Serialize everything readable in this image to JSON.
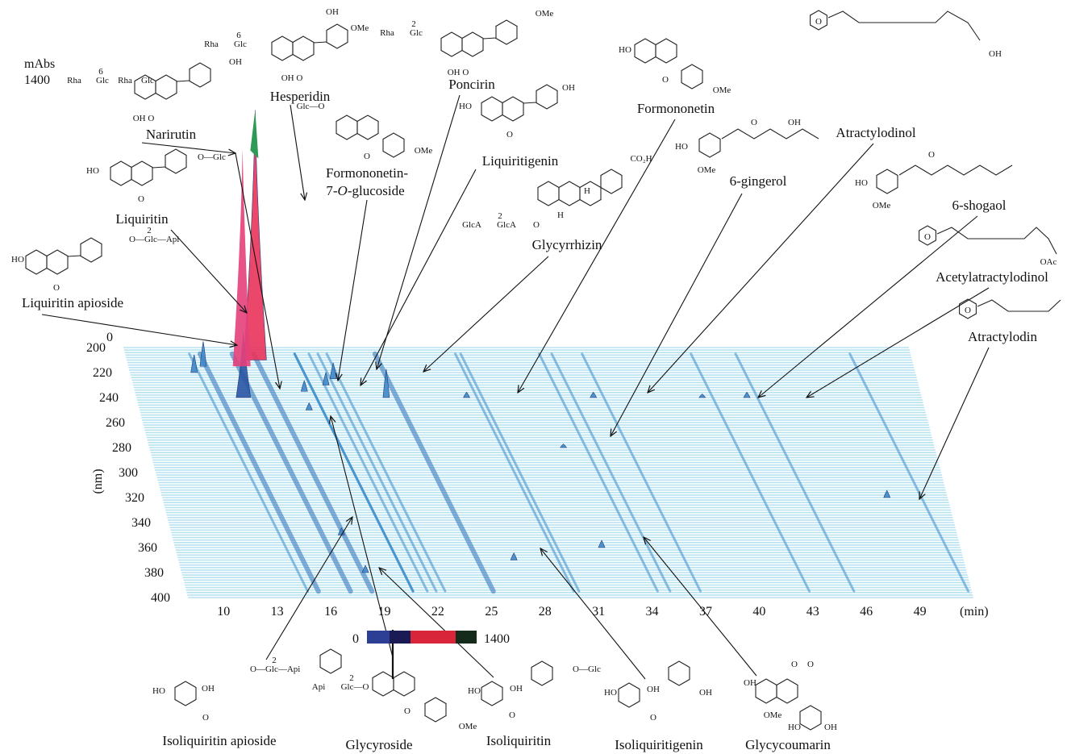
{
  "chart_data": {
    "type": "3d-chromatogram",
    "xlabel": "(min)",
    "ylabel": "(nm)",
    "zlabel": "mAbs",
    "zmax_label": "1400",
    "zmin_label": "0",
    "x_ticks": [
      10,
      13,
      16,
      19,
      22,
      25,
      28,
      31,
      34,
      37,
      40,
      43,
      46,
      49
    ],
    "y_ticks": [
      200,
      220,
      240,
      260,
      280,
      300,
      320,
      340,
      360,
      380,
      400
    ],
    "x_range": [
      8,
      52
    ],
    "y_range": [
      200,
      400
    ],
    "z_range": [
      0,
      1400
    ],
    "colorbar": {
      "min_label": "0",
      "max_label": "1400",
      "colors": [
        "#2c3f94",
        "#1a1a55",
        "#d8253a",
        "#142a1a"
      ]
    },
    "trace_color": "#7ccbe3",
    "peaks": [
      {
        "name": "Liquiritin apioside",
        "time": 11.6,
        "wavelength": 220,
        "height": 100
      },
      {
        "name": "Liquiritin",
        "time": 12.2,
        "wavelength": 215,
        "height": 140
      },
      {
        "name": "Narirutin",
        "time": 14.0,
        "wavelength": 240,
        "height": 360
      },
      {
        "name": "Hesperidin",
        "time": 15.2,
        "wavelength": 210,
        "height": 1400
      },
      {
        "name": "Formononetin-7-O-glucoside",
        "time": 17.5,
        "wavelength": 235,
        "height": 60
      },
      {
        "name": "Poncirin",
        "time": 18.8,
        "wavelength": 230,
        "height": 70
      },
      {
        "name": "Liquiritigenin",
        "time": 19.3,
        "wavelength": 225,
        "height": 90
      },
      {
        "name": "Glycyrrhizin",
        "time": 22.0,
        "wavelength": 240,
        "height": 160
      },
      {
        "name": "Formononetin",
        "time": 26.5,
        "wavelength": 240,
        "height": 30
      },
      {
        "name": "6-gingerol",
        "time": 31.2,
        "wavelength": 280,
        "height": 20
      },
      {
        "name": "Atractylodinol",
        "time": 33.6,
        "wavelength": 240,
        "height": 30
      },
      {
        "name": "6-shogaol",
        "time": 39.7,
        "wavelength": 240,
        "height": 20
      },
      {
        "name": "Acetylatractylodinol",
        "time": 42.2,
        "wavelength": 240,
        "height": 30
      },
      {
        "name": "Atractylodin",
        "time": 48.6,
        "wavelength": 320,
        "height": 40
      },
      {
        "name": "Isoliquiritin apioside",
        "time": 17.5,
        "wavelength": 350,
        "height": 40
      },
      {
        "name": "Glycyroside",
        "time": 17.5,
        "wavelength": 250,
        "height": 40
      },
      {
        "name": "Isoliquiritin",
        "time": 18.3,
        "wavelength": 380,
        "height": 40
      },
      {
        "name": "Isoliquiritigenin",
        "time": 26.8,
        "wavelength": 370,
        "height": 40
      },
      {
        "name": "Glycycoumarin",
        "time": 31.9,
        "wavelength": 360,
        "height": 40
      }
    ]
  },
  "compound_labels": {
    "narirutin": "Narirutin",
    "hesperidin": "Hesperidin",
    "poncirin": "Poncirin",
    "formononetin": "Formononetin",
    "atractylodinol": "Atractylodinol",
    "formononetin_glucoside_1": "Formononetin-",
    "formononetin_glucoside_2a": "7-",
    "formononetin_glucoside_2b": "O",
    "formononetin_glucoside_2c": "-glucoside",
    "liquiritigenin": "Liquiritigenin",
    "gingerol": "6-gingerol",
    "shogaol": "6-shogaol",
    "liquiritin": "Liquiritin",
    "glycyrrhizin": "Glycyrrhizin",
    "acetylatractylodinol": "Acetylatractylodinol",
    "liquiritin_apioside": "Liquiritin apioside",
    "atractylodin": "Atractylodin",
    "isoliquiritin_apioside": "Isoliquiritin apioside",
    "glycyroside": "Glycyroside",
    "isoliquiritin": "Isoliquiritin",
    "isoliquiritigenin": "Isoliquiritigenin",
    "glycycoumarin": "Glycycoumarin"
  },
  "structure_groups": {
    "oh": "OH",
    "ho": "HO",
    "ome": "OMe",
    "o": "O",
    "rha": "Rha",
    "glc": "Glc",
    "api": "Api",
    "glca": "GlcA",
    "co2h": "CO₂H",
    "oac": "OAc",
    "h": "H",
    "n2": "2",
    "n6": "6"
  }
}
